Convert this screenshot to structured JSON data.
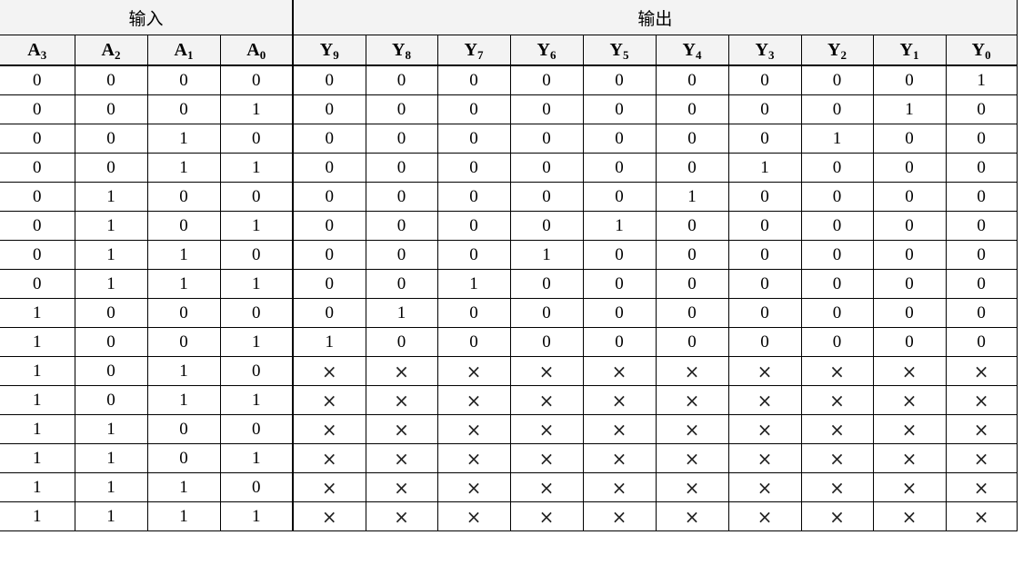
{
  "table": {
    "group_input": "输入",
    "group_output": "输出",
    "columns": [
      {
        "base": "A",
        "sub": "3"
      },
      {
        "base": "A",
        "sub": "2"
      },
      {
        "base": "A",
        "sub": "1"
      },
      {
        "base": "A",
        "sub": "0"
      },
      {
        "base": "Y",
        "sub": "9"
      },
      {
        "base": "Y",
        "sub": "8"
      },
      {
        "base": "Y",
        "sub": "7"
      },
      {
        "base": "Y",
        "sub": "6"
      },
      {
        "base": "Y",
        "sub": "5"
      },
      {
        "base": "Y",
        "sub": "4"
      },
      {
        "base": "Y",
        "sub": "3"
      },
      {
        "base": "Y",
        "sub": "2"
      },
      {
        "base": "Y",
        "sub": "1"
      },
      {
        "base": "Y",
        "sub": "0"
      }
    ],
    "rows": [
      [
        "0",
        "0",
        "0",
        "0",
        "0",
        "0",
        "0",
        "0",
        "0",
        "0",
        "0",
        "0",
        "0",
        "1"
      ],
      [
        "0",
        "0",
        "0",
        "1",
        "0",
        "0",
        "0",
        "0",
        "0",
        "0",
        "0",
        "0",
        "1",
        "0"
      ],
      [
        "0",
        "0",
        "1",
        "0",
        "0",
        "0",
        "0",
        "0",
        "0",
        "0",
        "0",
        "1",
        "0",
        "0"
      ],
      [
        "0",
        "0",
        "1",
        "1",
        "0",
        "0",
        "0",
        "0",
        "0",
        "0",
        "1",
        "0",
        "0",
        "0"
      ],
      [
        "0",
        "1",
        "0",
        "0",
        "0",
        "0",
        "0",
        "0",
        "0",
        "1",
        "0",
        "0",
        "0",
        "0"
      ],
      [
        "0",
        "1",
        "0",
        "1",
        "0",
        "0",
        "0",
        "0",
        "1",
        "0",
        "0",
        "0",
        "0",
        "0"
      ],
      [
        "0",
        "1",
        "1",
        "0",
        "0",
        "0",
        "0",
        "1",
        "0",
        "0",
        "0",
        "0",
        "0",
        "0"
      ],
      [
        "0",
        "1",
        "1",
        "1",
        "0",
        "0",
        "1",
        "0",
        "0",
        "0",
        "0",
        "0",
        "0",
        "0"
      ],
      [
        "1",
        "0",
        "0",
        "0",
        "0",
        "1",
        "0",
        "0",
        "0",
        "0",
        "0",
        "0",
        "0",
        "0"
      ],
      [
        "1",
        "0",
        "0",
        "1",
        "1",
        "0",
        "0",
        "0",
        "0",
        "0",
        "0",
        "0",
        "0",
        "0"
      ],
      [
        "1",
        "0",
        "1",
        "0",
        "×",
        "×",
        "×",
        "×",
        "×",
        "×",
        "×",
        "×",
        "×",
        "×"
      ],
      [
        "1",
        "0",
        "1",
        "1",
        "×",
        "×",
        "×",
        "×",
        "×",
        "×",
        "×",
        "×",
        "×",
        "×"
      ],
      [
        "1",
        "1",
        "0",
        "0",
        "×",
        "×",
        "×",
        "×",
        "×",
        "×",
        "×",
        "×",
        "×",
        "×"
      ],
      [
        "1",
        "1",
        "0",
        "1",
        "×",
        "×",
        "×",
        "×",
        "×",
        "×",
        "×",
        "×",
        "×",
        "×"
      ],
      [
        "1",
        "1",
        "1",
        "0",
        "×",
        "×",
        "×",
        "×",
        "×",
        "×",
        "×",
        "×",
        "×",
        "×"
      ],
      [
        "1",
        "1",
        "1",
        "1",
        "×",
        "×",
        "×",
        "×",
        "×",
        "×",
        "×",
        "×",
        "×",
        "×"
      ]
    ]
  }
}
